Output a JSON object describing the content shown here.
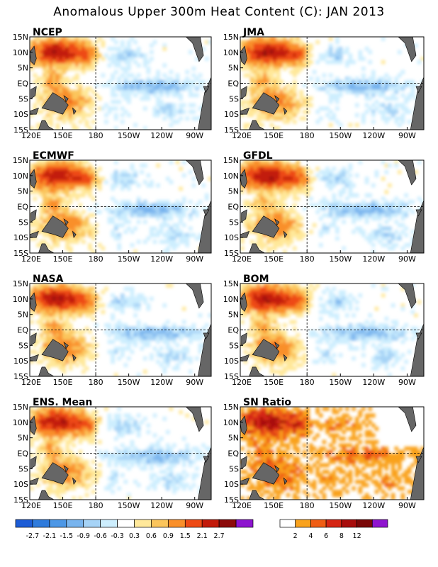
{
  "title": "Anomalous Upper 300m Heat Content (C): JAN 2013",
  "colors": {
    "land": "#666666",
    "anomaly_scale": [
      "#1c5cd6",
      "#2f7bdc",
      "#4c97e6",
      "#78b4ee",
      "#a6d3f6",
      "#cdeefe",
      "#ffffff",
      "#ffe89a",
      "#fbc55c",
      "#f98f2a",
      "#ee4a14",
      "#c21a0a",
      "#8c0a0a",
      "#8d14cf"
    ],
    "sn_scale": [
      "#ffffff",
      "#f9a21d",
      "#ef5d14",
      "#d52513",
      "#a80d0c",
      "#7a0707",
      "#8f14cf"
    ]
  },
  "lat_ticks": [
    "15N",
    "10N",
    "5N",
    "EQ",
    "5S",
    "10S",
    "15S"
  ],
  "lon_ticks": [
    "120E",
    "150E",
    "180",
    "150W",
    "120W",
    "90W"
  ],
  "panels": [
    {
      "name": "NCEP"
    },
    {
      "name": "JMA"
    },
    {
      "name": "ECMWF"
    },
    {
      "name": "GFDL"
    },
    {
      "name": "NASA"
    },
    {
      "name": "BOM"
    },
    {
      "name": "ENS. Mean"
    },
    {
      "name": "SN Ratio"
    }
  ],
  "colorbar_left": {
    "labels": [
      "-2.7",
      "-2.1",
      "-1.5",
      "-0.9",
      "-0.6",
      "-0.3",
      "0.3",
      "0.6",
      "0.9",
      "1.5",
      "2.1",
      "2.7"
    ]
  },
  "colorbar_right": {
    "labels": [
      "2",
      "4",
      "6",
      "8",
      "12"
    ]
  },
  "chart_data": {
    "type": "heatmap",
    "title": "Anomalous Upper 300m Heat Content (C): JAN 2013",
    "variable": "upper 300m heat content anomaly (C)",
    "lat_range": [
      -15,
      15
    ],
    "lon_range": [
      120,
      285
    ],
    "grid": "dashed lines at EQ and 180",
    "panels": [
      "NCEP",
      "JMA",
      "ECMWF",
      "GFDL",
      "NASA",
      "BOM",
      "ENS. Mean",
      "SN Ratio"
    ],
    "anomaly_levels": [
      -2.7,
      -2.1,
      -1.5,
      -0.9,
      -0.6,
      -0.3,
      0.3,
      0.6,
      0.9,
      1.5,
      2.1,
      2.7
    ],
    "sn_levels": [
      2,
      4,
      6,
      8,
      12
    ],
    "features": [
      {
        "name": "western Pacific warm pool",
        "lat": [
          5,
          14
        ],
        "lon": [
          122,
          178
        ],
        "value": 2.1
      },
      {
        "name": "west warm core",
        "lat": [
          8,
          12
        ],
        "lon": [
          125,
          165
        ],
        "value": 2.7
      },
      {
        "name": "southwest warm tongue",
        "lat": [
          -12,
          -2
        ],
        "lon": [
          130,
          175
        ],
        "value": 1.2
      },
      {
        "name": "equatorial central-east cool band",
        "lat": [
          -4,
          2
        ],
        "lon": [
          190,
          260
        ],
        "value": -0.9
      },
      {
        "name": "northern central cool patches",
        "lat": [
          6,
          12
        ],
        "lon": [
          185,
          245
        ],
        "value": -0.6
      },
      {
        "name": "eastern off-equator cool",
        "lat": [
          -12,
          -6
        ],
        "lon": [
          230,
          265
        ],
        "value": -0.6
      }
    ]
  }
}
